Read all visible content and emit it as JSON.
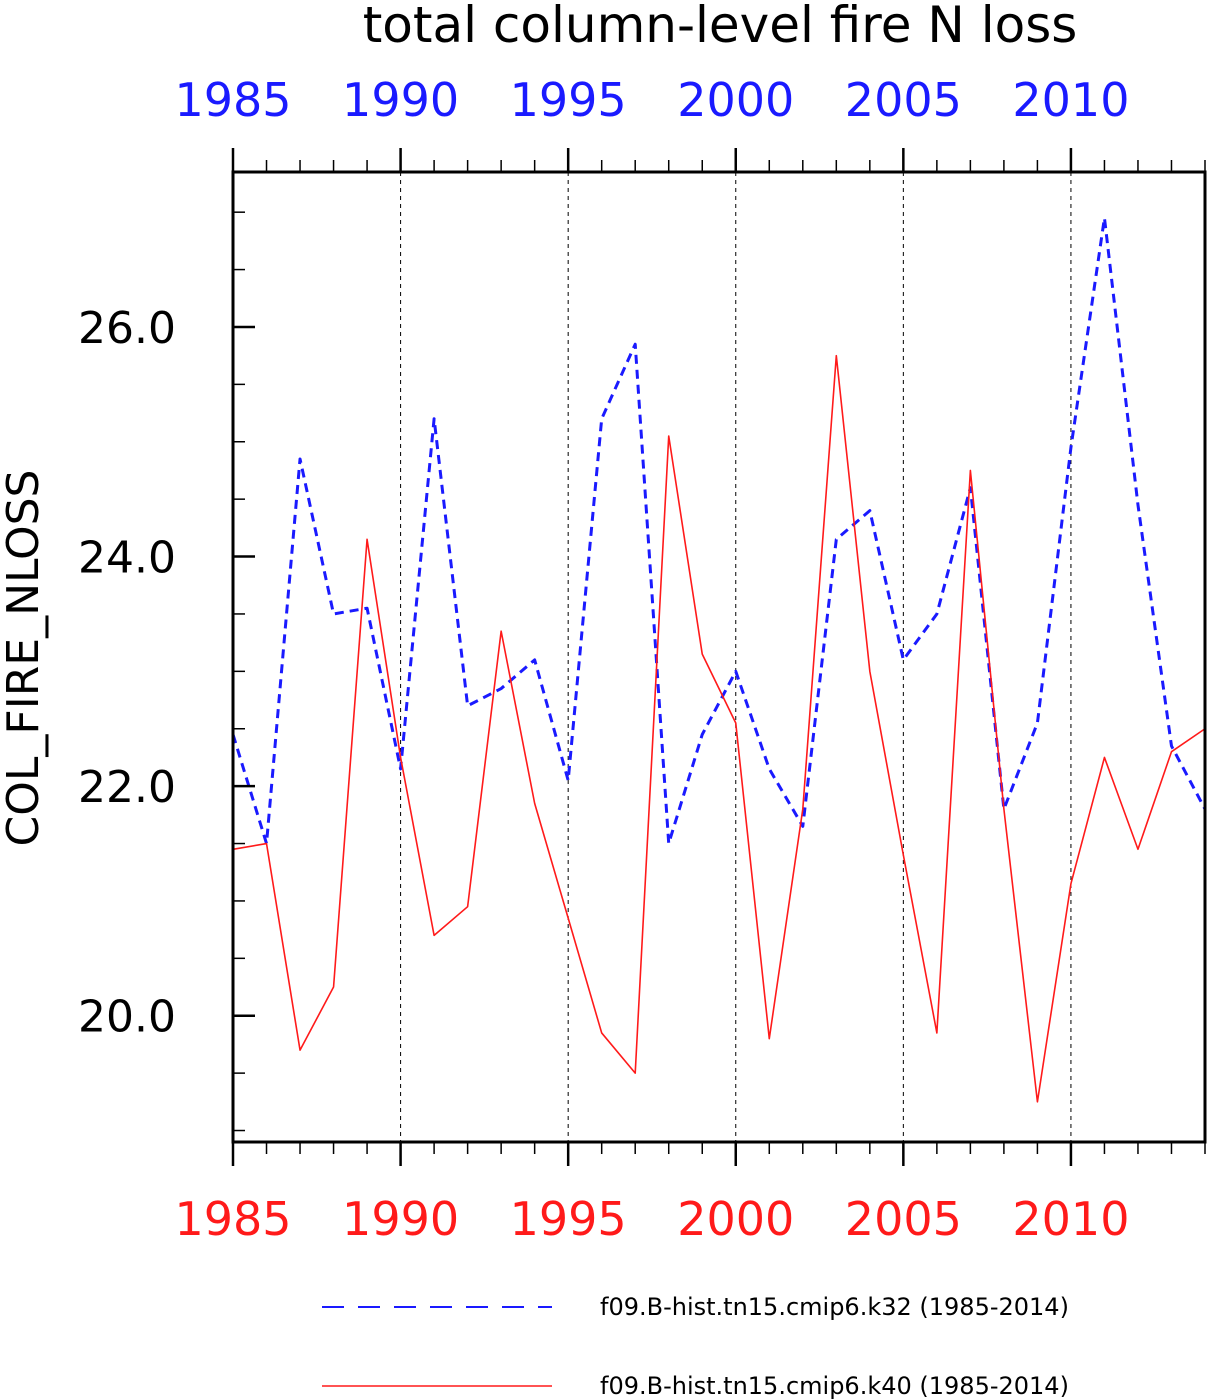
{
  "chart_data": {
    "type": "line",
    "title": "total column-level fire N loss",
    "ylabel": "COL_FIRE_NLOSS",
    "xlabel": "",
    "xlim": [
      1985,
      2014
    ],
    "ylim": [
      18.9,
      27.35
    ],
    "x_tick_labels": [
      "1985",
      "1990",
      "1995",
      "2000",
      "2005",
      "2010"
    ],
    "y_tick_labels": [
      "20.0",
      "22.0",
      "24.0",
      "26.0"
    ],
    "grid": "vertical dashed lines at labeled x ticks",
    "legend_position": "bottom",
    "colors": {
      "top_axis": "#1a1aff",
      "bottom_axis": "#ff1a1a"
    },
    "x": [
      1985,
      1986,
      1987,
      1988,
      1989,
      1990,
      1991,
      1992,
      1993,
      1994,
      1995,
      1996,
      1997,
      1998,
      1999,
      2000,
      2001,
      2002,
      2003,
      2004,
      2005,
      2006,
      2007,
      2008,
      2009,
      2010,
      2011,
      2012,
      2013,
      2014
    ],
    "series": [
      {
        "name": "f09.B-hist.tn15.cmip6.k32 (1985-2014)",
        "color": "#1a1aff",
        "style": "dashed",
        "values": [
          22.45,
          21.5,
          24.85,
          23.5,
          23.55,
          22.15,
          25.2,
          22.7,
          22.85,
          23.1,
          22.05,
          25.2,
          25.85,
          21.5,
          22.45,
          23.0,
          22.15,
          21.65,
          24.15,
          24.4,
          23.1,
          23.5,
          24.6,
          21.8,
          22.55,
          24.95,
          26.95,
          24.45,
          22.35,
          21.8
        ]
      },
      {
        "name": "f09.B-hist.tn15.cmip6.k40 (1985-2014)",
        "color": "#ff1a1a",
        "style": "solid",
        "values": [
          21.45,
          21.5,
          19.7,
          20.25,
          24.15,
          22.25,
          20.7,
          20.95,
          23.35,
          21.85,
          20.85,
          19.85,
          19.5,
          25.05,
          23.15,
          22.55,
          19.8,
          21.8,
          25.75,
          23.0,
          21.4,
          19.85,
          24.75,
          21.8,
          19.25,
          21.15,
          22.25,
          21.45,
          22.3,
          22.5
        ]
      }
    ]
  }
}
